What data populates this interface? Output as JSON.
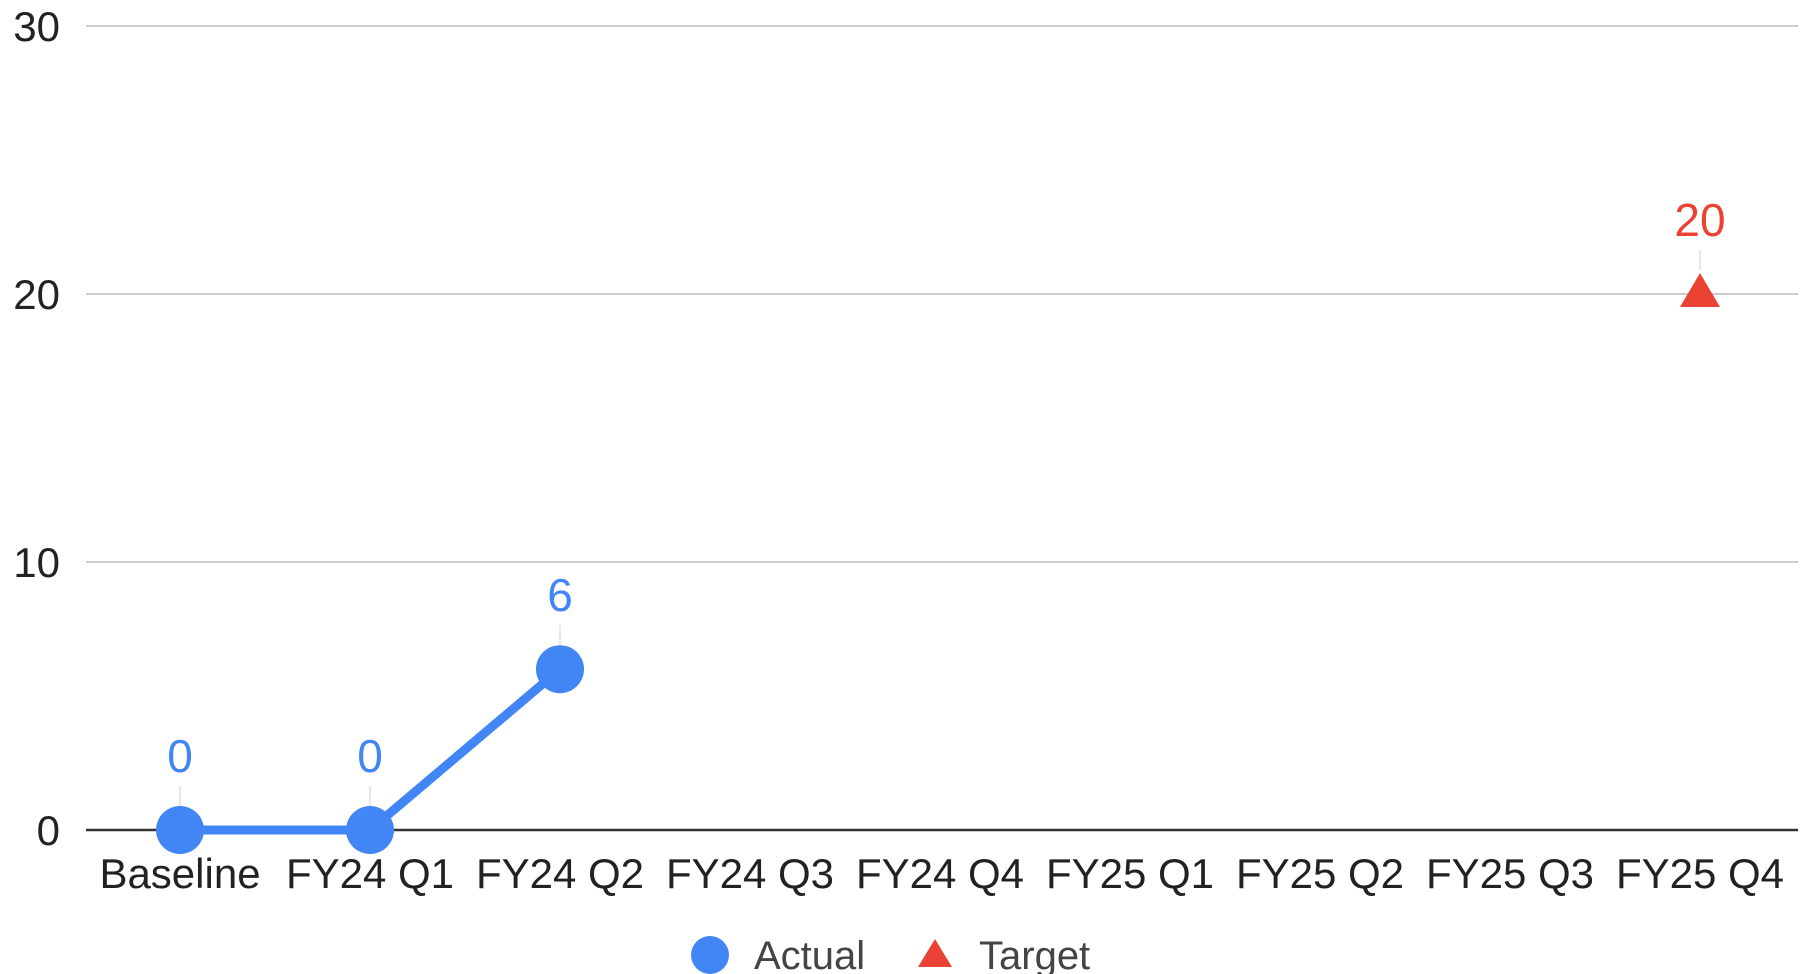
{
  "chart_data": {
    "type": "line",
    "title": "",
    "xlabel": "",
    "ylabel": "",
    "categories": [
      "Baseline",
      "FY24 Q1",
      "FY24 Q2",
      "FY24 Q3",
      "FY24 Q4",
      "FY25 Q1",
      "FY25 Q2",
      "FY25 Q3",
      "FY25 Q4"
    ],
    "ylim": [
      0,
      30
    ],
    "yticks": [
      0,
      10,
      20,
      30
    ],
    "grid": true,
    "legend_position": "bottom",
    "series": [
      {
        "name": "Actual",
        "marker": "circle",
        "color": "#4285f4",
        "values": [
          0,
          0,
          6,
          null,
          null,
          null,
          null,
          null,
          null
        ],
        "data_labels": [
          "0",
          "0",
          "6",
          null,
          null,
          null,
          null,
          null,
          null
        ]
      },
      {
        "name": "Target",
        "marker": "triangle",
        "color": "#ea4335",
        "values": [
          null,
          null,
          null,
          null,
          null,
          null,
          null,
          null,
          20
        ],
        "data_labels": [
          null,
          null,
          null,
          null,
          null,
          null,
          null,
          null,
          "20"
        ]
      }
    ]
  }
}
